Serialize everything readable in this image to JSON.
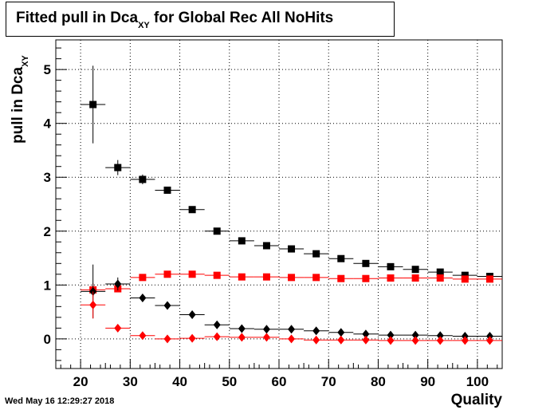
{
  "title": {
    "main": "Fitted pull in Dca",
    "sub": "XY",
    "tail": " for Global Rec All NoHits"
  },
  "ylabel": {
    "main": "pull in Dca",
    "sub": "XY"
  },
  "xlabel": "Quality",
  "timestamp": "Wed May 16 12:29:27 2018",
  "chart_data": {
    "type": "scatter",
    "title": "Fitted pull in Dca_XY for Global Rec All NoHits",
    "xlabel": "Quality",
    "ylabel": "pull in Dca_XY",
    "xlim": [
      15,
      105
    ],
    "ylim": [
      -0.55,
      5.55
    ],
    "xticks": [
      20,
      30,
      40,
      50,
      60,
      70,
      80,
      90,
      100
    ],
    "yticks": [
      0,
      1,
      2,
      3,
      4,
      5
    ],
    "grid": true,
    "legend": "none",
    "series": [
      {
        "color": "#000000",
        "marker": "square",
        "x": [
          22.5,
          27.5,
          32.5,
          37.5,
          42.5,
          47.5,
          52.5,
          57.5,
          62.5,
          67.5,
          72.5,
          77.5,
          82.5,
          87.5,
          92.5,
          97.5,
          102.5
        ],
        "y": [
          4.35,
          3.18,
          2.96,
          2.76,
          2.4,
          2.0,
          1.82,
          1.73,
          1.67,
          1.58,
          1.49,
          1.4,
          1.34,
          1.29,
          1.24,
          1.18,
          1.16
        ],
        "yerr": [
          0.72,
          0.14,
          0.09,
          0.05,
          0.04,
          0.03,
          0.03,
          0.03,
          0.03,
          0.03,
          0.03,
          0.03,
          0.03,
          0.03,
          0.03,
          0.03,
          0.03
        ]
      },
      {
        "color": "#ff0000",
        "marker": "square",
        "x": [
          22.5,
          27.5,
          32.5,
          37.5,
          42.5,
          47.5,
          52.5,
          57.5,
          62.5,
          67.5,
          72.5,
          77.5,
          82.5,
          87.5,
          92.5,
          97.5,
          102.5
        ],
        "y": [
          0.91,
          0.93,
          1.14,
          1.2,
          1.2,
          1.18,
          1.15,
          1.15,
          1.14,
          1.14,
          1.12,
          1.12,
          1.13,
          1.13,
          1.13,
          1.11,
          1.11
        ],
        "yerr": [
          0.12,
          0.05,
          0.04,
          0.03,
          0.03,
          0.03,
          0.02,
          0.02,
          0.02,
          0.02,
          0.02,
          0.02,
          0.02,
          0.02,
          0.02,
          0.02,
          0.02
        ]
      },
      {
        "color": "#000000",
        "marker": "diamond",
        "x": [
          22.5,
          27.5,
          32.5,
          37.5,
          42.5,
          47.5,
          52.5,
          57.5,
          62.5,
          67.5,
          72.5,
          77.5,
          82.5,
          87.5,
          92.5,
          97.5,
          102.5
        ],
        "y": [
          0.88,
          1.02,
          0.76,
          0.62,
          0.45,
          0.26,
          0.19,
          0.18,
          0.18,
          0.15,
          0.12,
          0.09,
          0.07,
          0.07,
          0.06,
          0.05,
          0.05
        ],
        "yerr": [
          0.5,
          0.12,
          0.06,
          0.04,
          0.03,
          0.02,
          0.02,
          0.02,
          0.02,
          0.02,
          0.02,
          0.02,
          0.02,
          0.02,
          0.02,
          0.02,
          0.02
        ]
      },
      {
        "color": "#ff0000",
        "marker": "diamond",
        "x": [
          22.5,
          27.5,
          32.5,
          37.5,
          42.5,
          47.5,
          52.5,
          57.5,
          62.5,
          67.5,
          72.5,
          77.5,
          82.5,
          87.5,
          92.5,
          97.5,
          102.5
        ],
        "y": [
          0.63,
          0.2,
          0.06,
          0.0,
          0.01,
          0.04,
          0.03,
          0.03,
          0.0,
          -0.02,
          -0.02,
          -0.02,
          -0.03,
          -0.03,
          -0.03,
          -0.03,
          -0.03
        ],
        "yerr": [
          0.25,
          0.05,
          0.03,
          0.02,
          0.02,
          0.02,
          0.02,
          0.02,
          0.02,
          0.02,
          0.02,
          0.02,
          0.02,
          0.02,
          0.02,
          0.02,
          0.02
        ]
      }
    ]
  }
}
